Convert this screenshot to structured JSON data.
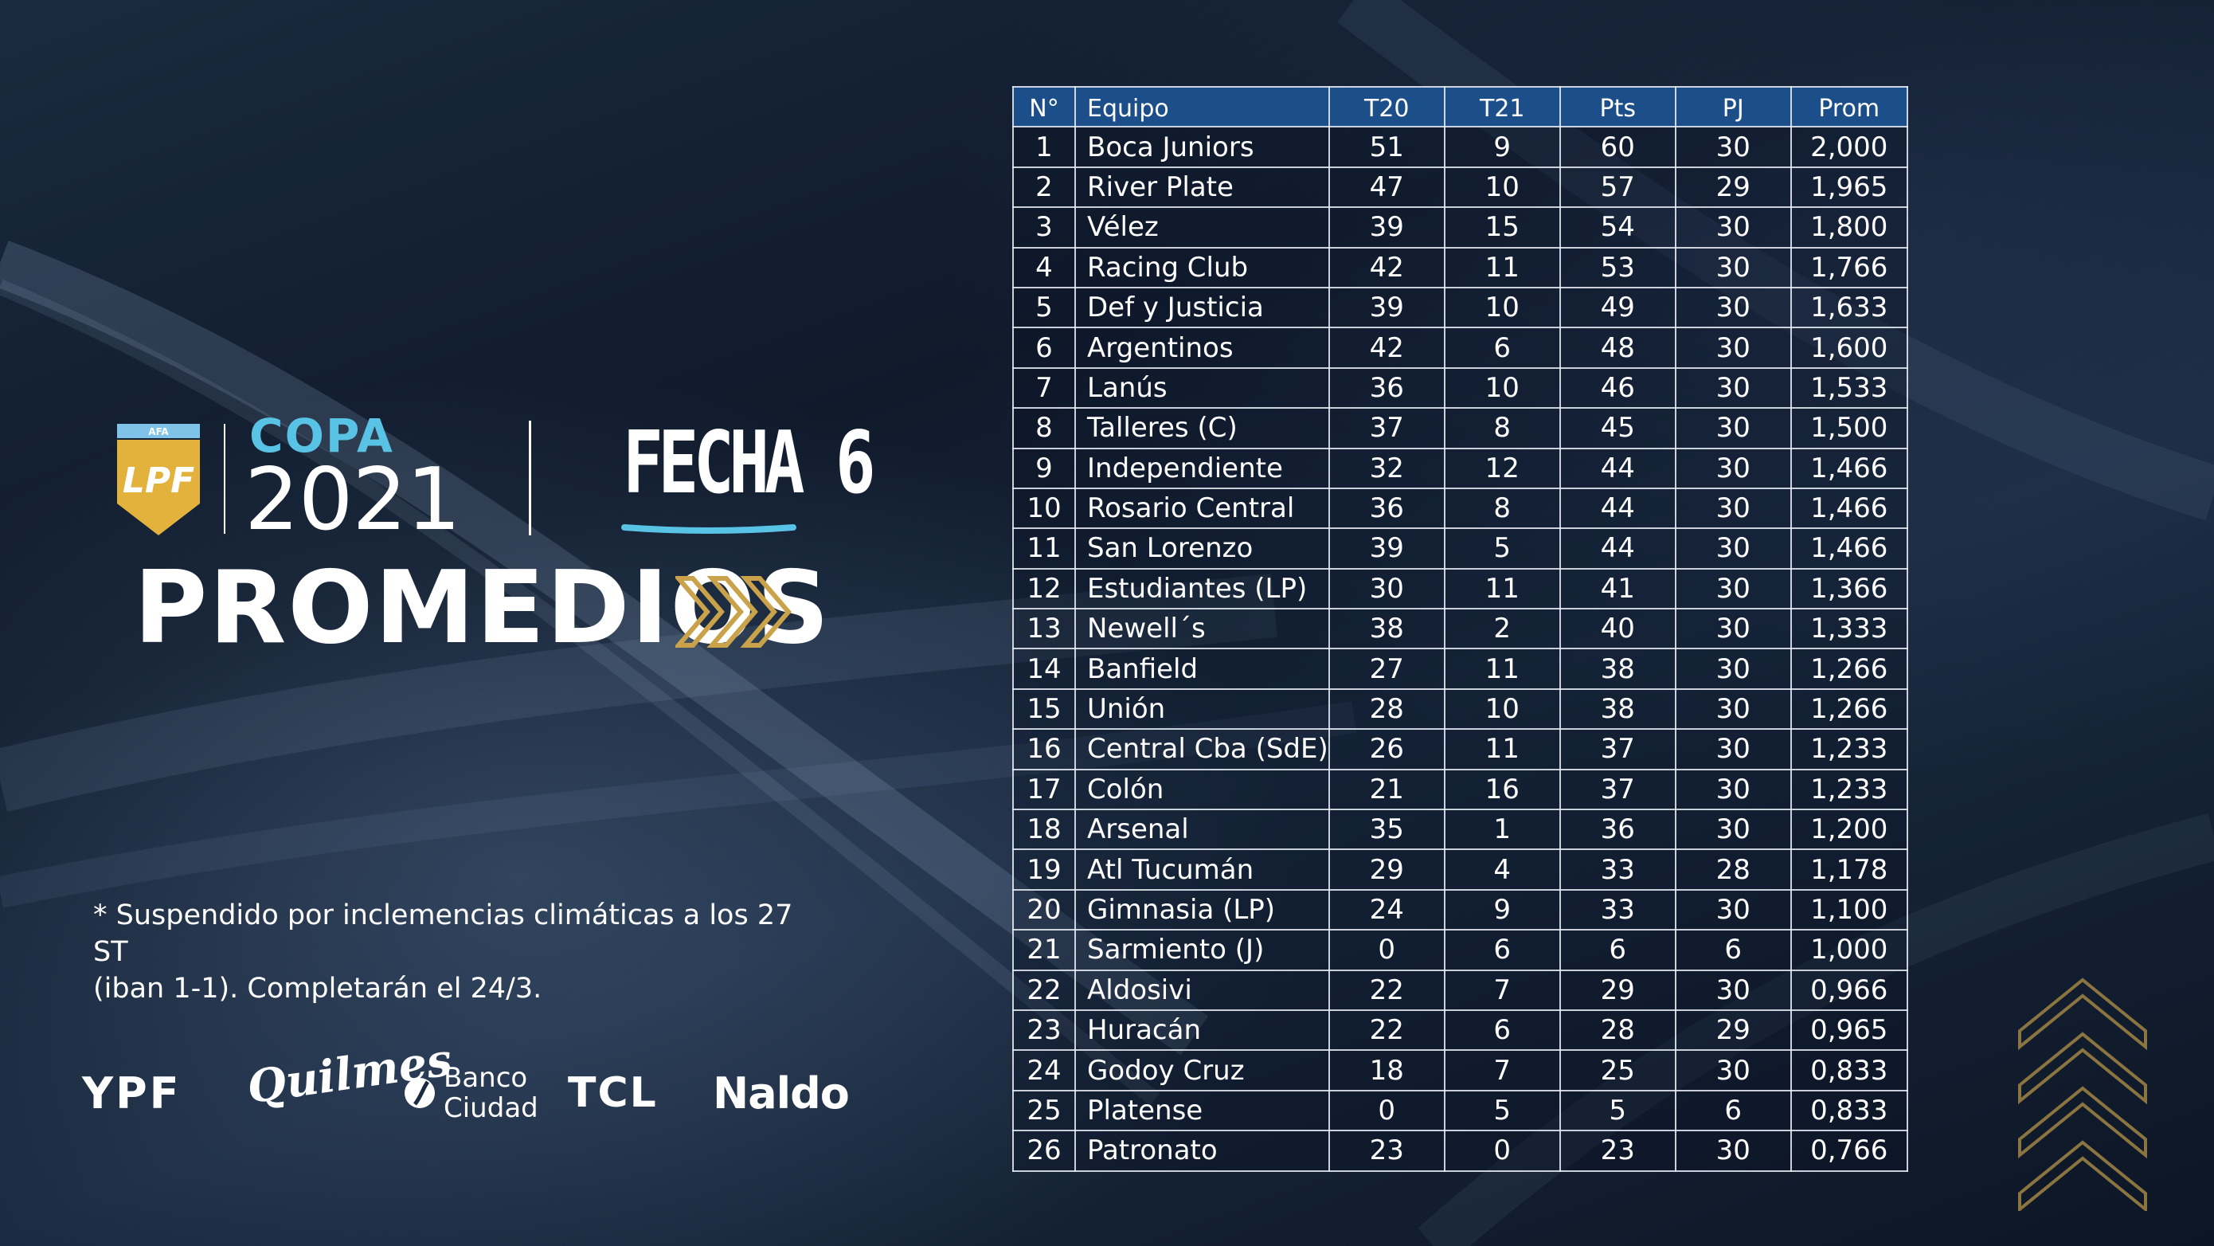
{
  "brand": {
    "shield_label": "AFA",
    "shield_letters": "LPF",
    "copa_word": "COPA",
    "copa_year": "2021",
    "fecha": "FECHA 6",
    "title": "PROMEDIOS",
    "accent_blue": "#59c3e6",
    "accent_gold": "#c9a24a"
  },
  "footnote": {
    "line1": "* Suspendido por inclemencias climáticas a los 27 ST",
    "line2": "(iban 1-1). Completarán el 24/3."
  },
  "sponsors": {
    "ypf": "YPF",
    "quilmes": "Quilmes",
    "banco_line1": "Banco",
    "banco_line2": "Ciudad",
    "tcl": "TCL",
    "naldo": "Naldo"
  },
  "table": {
    "header_color": "#1c4e8a",
    "columns": [
      "N°",
      "Equipo",
      "T20",
      "T21",
      "Pts",
      "PJ",
      "Prom"
    ],
    "rows": [
      [
        "1",
        "Boca Juniors",
        "51",
        "9",
        "60",
        "30",
        "2,000"
      ],
      [
        "2",
        "River Plate",
        "47",
        "10",
        "57",
        "29",
        "1,965"
      ],
      [
        "3",
        "Vélez",
        "39",
        "15",
        "54",
        "30",
        "1,800"
      ],
      [
        "4",
        "Racing Club",
        "42",
        "11",
        "53",
        "30",
        "1,766"
      ],
      [
        "5",
        "Def y Justicia",
        "39",
        "10",
        "49",
        "30",
        "1,633"
      ],
      [
        "6",
        "Argentinos",
        "42",
        "6",
        "48",
        "30",
        "1,600"
      ],
      [
        "7",
        "Lanús",
        "36",
        "10",
        "46",
        "30",
        "1,533"
      ],
      [
        "8",
        "Talleres (C)",
        "37",
        "8",
        "45",
        "30",
        "1,500"
      ],
      [
        "9",
        "Independiente",
        "32",
        "12",
        "44",
        "30",
        "1,466"
      ],
      [
        "10",
        "Rosario Central",
        "36",
        "8",
        "44",
        "30",
        "1,466"
      ],
      [
        "11",
        "San Lorenzo",
        "39",
        "5",
        "44",
        "30",
        "1,466"
      ],
      [
        "12",
        "Estudiantes (LP)",
        "30",
        "11",
        "41",
        "30",
        "1,366"
      ],
      [
        "13",
        "Newell´s",
        "38",
        "2",
        "40",
        "30",
        "1,333"
      ],
      [
        "14",
        "Banfield",
        "27",
        "11",
        "38",
        "30",
        "1,266"
      ],
      [
        "15",
        "Unión",
        "28",
        "10",
        "38",
        "30",
        "1,266"
      ],
      [
        "16",
        "Central Cba (SdE)",
        "26",
        "11",
        "37",
        "30",
        "1,233"
      ],
      [
        "17",
        "Colón",
        "21",
        "16",
        "37",
        "30",
        "1,233"
      ],
      [
        "18",
        "Arsenal",
        "35",
        "1",
        "36",
        "30",
        "1,200"
      ],
      [
        "19",
        "Atl Tucumán",
        "29",
        "4",
        "33",
        "28",
        "1,178"
      ],
      [
        "20",
        "Gimnasia (LP)",
        "24",
        "9",
        "33",
        "30",
        "1,100"
      ],
      [
        "21",
        "Sarmiento (J)",
        "0",
        "6",
        "6",
        "6",
        "1,000"
      ],
      [
        "22",
        "Aldosivi",
        "22",
        "7",
        "29",
        "30",
        "0,966"
      ],
      [
        "23",
        "Huracán",
        "22",
        "6",
        "28",
        "29",
        "0,965"
      ],
      [
        "24",
        "Godoy Cruz",
        "18",
        "7",
        "25",
        "30",
        "0,833"
      ],
      [
        "25",
        "Platense",
        "0",
        "5",
        "5",
        "6",
        "0,833"
      ],
      [
        "26",
        "Patronato",
        "23",
        "0",
        "23",
        "30",
        "0,766"
      ]
    ]
  }
}
